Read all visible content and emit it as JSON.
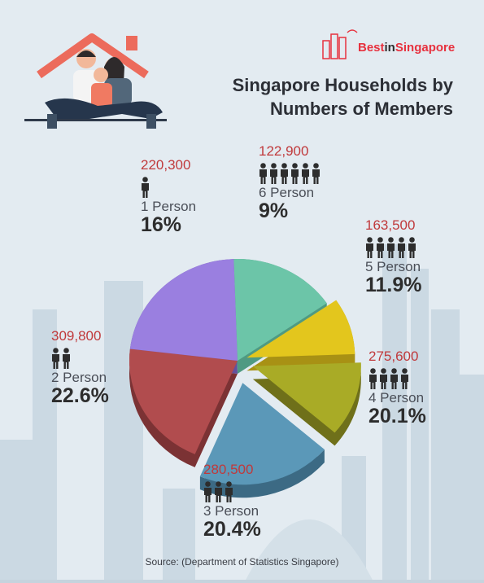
{
  "header": {
    "title_line1": "Singapore Households by",
    "title_line2": "Numbers of Members",
    "brand_part1": "Best",
    "brand_part2": "in",
    "brand_part3": "Singapore"
  },
  "footer": {
    "source": "Source: (Department of Statistics Singapore)"
  },
  "colors": {
    "background": "#e3ebf1",
    "count_text": "#c0393b",
    "brand": "#e7313e"
  },
  "chart_data": {
    "type": "pie",
    "title": "Singapore Households by Numbers of Members",
    "slices": [
      {
        "label": "1 Person",
        "count": "220,300",
        "percent_text": "16%",
        "value": 16.0,
        "members": 1,
        "color": "#6cc5a8",
        "side": "#4f9a82"
      },
      {
        "label": "6 Person",
        "count": "122,900",
        "percent_text": "9%",
        "value": 9.0,
        "members": 6,
        "color": "#e3c61d",
        "side": "#a89114"
      },
      {
        "label": "5 Person",
        "count": "163,500",
        "percent_text": "11.9%",
        "value": 11.9,
        "members": 5,
        "color": "#a9ab26",
        "side": "#6f701a"
      },
      {
        "label": "4 Person",
        "count": "275,600",
        "percent_text": "20.1%",
        "value": 20.1,
        "members": 4,
        "color": "#5b98b8",
        "side": "#3c6a84"
      },
      {
        "label": "3 Person",
        "count": "280,500",
        "percent_text": "20.4%",
        "value": 20.4,
        "members": 3,
        "color": "#b14c4e",
        "side": "#7b3234"
      },
      {
        "label": "2 Person",
        "count": "309,800",
        "percent_text": "22.6%",
        "value": 22.6,
        "members": 2,
        "color": "#9a7fe0",
        "side": "#65519c"
      }
    ]
  }
}
